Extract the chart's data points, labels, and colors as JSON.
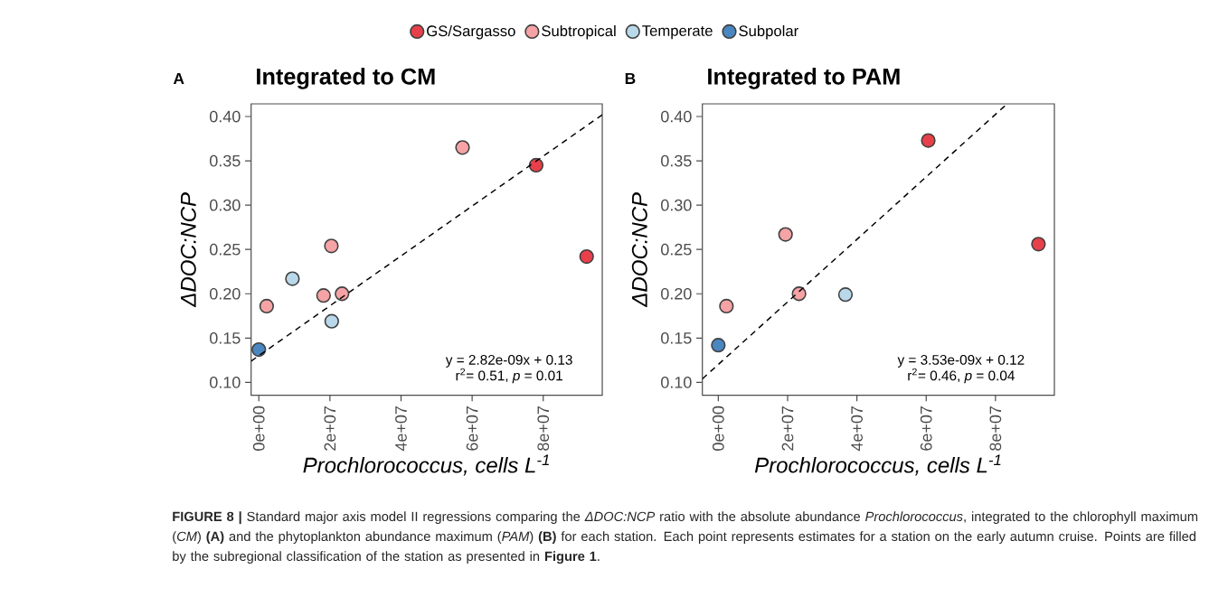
{
  "chart_data": [
    {
      "type": "scatter",
      "title": "Integrated to CM",
      "xlabel": "Prochlorococcus, cells L$^{-1}$",
      "ylabel": "ΔDOC:NCP",
      "xlim": [
        -2170000,
        96600000
      ],
      "ylim": [
        0.0854,
        0.4143
      ],
      "xticks": [
        {
          "value": 0,
          "label": "0e+00"
        },
        {
          "value": 20000000,
          "label": "2e+07"
        },
        {
          "value": 40000000,
          "label": "4e+07"
        },
        {
          "value": 60000000,
          "label": "6e+07"
        },
        {
          "value": 80000000,
          "label": "8e+07"
        }
      ],
      "yticks": [
        {
          "value": 0.1,
          "label": "0.10"
        },
        {
          "value": 0.15,
          "label": "0.15"
        },
        {
          "value": 0.2,
          "label": "0.20"
        },
        {
          "value": 0.25,
          "label": "0.25"
        },
        {
          "value": 0.3,
          "label": "0.30"
        },
        {
          "value": 0.35,
          "label": "0.35"
        },
        {
          "value": 0.4,
          "label": "0.40"
        }
      ],
      "grid": false,
      "legend": "top",
      "marker": "circle",
      "series": [
        {
          "name": "GS/Sargasso",
          "color": "#e8404a",
          "x": [
            78000000,
            92200000
          ],
          "values": [
            0.345,
            0.242
          ]
        },
        {
          "name": "Subtropical",
          "color": "#f5a3a5",
          "x": [
            2200000,
            20400000,
            18200000,
            23400000,
            57300000
          ],
          "values": [
            0.186,
            0.254,
            0.198,
            0.2,
            0.365
          ]
        },
        {
          "name": "Temperate",
          "color": "#b9d9ea",
          "x": [
            9450000,
            20500000
          ],
          "values": [
            0.217,
            0.169
          ]
        },
        {
          "name": "Subpolar",
          "color": "#4a86c0",
          "x": [
            0
          ],
          "values": [
            0.137
          ]
        },
        {
          "type": "line",
          "color": "#000000",
          "line_style": "dashed",
          "marker": "none",
          "x": [
            -2170000,
            96600000
          ],
          "values": [
            0.124,
            0.402
          ]
        }
      ],
      "annotations": [
        "A",
        "y = 2.82e-09x + 0.13",
        "r$^{2}$= 0.51, *p* = 0.01",
        "**FIGURE 8 |** Standard major axis model II regressions comparing the *ΔDOC:NCP* ratio with the absolute abundance *Prochlorococcus*, integrated to the chlorophyll maximum (*CM*) **(A)** and the phytoplankton abundance maximum (*PAM*) **(B)** for each station. Each point represents estimates for a station on the early autumn cruise. Points are filled by the subregional classification of the station as presented in **Figure 1**."
      ]
    },
    {
      "type": "scatter",
      "title": "Integrated to PAM",
      "xlabel": "Prochlorococcus, cells L$^{-1}$",
      "ylabel": "ΔDOC:NCP",
      "xlim": [
        -4600000,
        97000000
      ],
      "ylim": [
        0.0854,
        0.4143
      ],
      "xticks": [
        {
          "value": 0,
          "label": "0e+00"
        },
        {
          "value": 20000000,
          "label": "2e+07"
        },
        {
          "value": 40000000,
          "label": "4e+07"
        },
        {
          "value": 60000000,
          "label": "6e+07"
        },
        {
          "value": 80000000,
          "label": "8e+07"
        }
      ],
      "yticks": [
        {
          "value": 0.1,
          "label": "0.10"
        },
        {
          "value": 0.15,
          "label": "0.15"
        },
        {
          "value": 0.2,
          "label": "0.20"
        },
        {
          "value": 0.25,
          "label": "0.25"
        },
        {
          "value": 0.3,
          "label": "0.30"
        },
        {
          "value": 0.35,
          "label": "0.35"
        },
        {
          "value": 0.4,
          "label": "0.40"
        }
      ],
      "grid": false,
      "marker": "circle",
      "series": [
        {
          "color": "#e8404a",
          "x": [
            60600000,
            92400000
          ],
          "values": [
            0.373,
            0.256
          ]
        },
        {
          "color": "#f5a3a5",
          "x": [
            2350000,
            19400000,
            23300000
          ],
          "values": [
            0.186,
            0.267,
            0.2
          ]
        },
        {
          "color": "#b9d9ea",
          "x": [
            36700000
          ],
          "values": [
            0.199
          ]
        },
        {
          "color": "#4a86c0",
          "x": [
            0
          ],
          "values": [
            0.142
          ]
        },
        {
          "type": "line",
          "color": "#000000",
          "line_style": "dashed",
          "marker": "none",
          "x": [
            -4600000,
            83000000
          ],
          "values": [
            0.104,
            0.413
          ]
        }
      ],
      "annotations": [
        "B",
        "y = 3.53e-09x + 0.12",
        "r$^{2}$= 0.46, *p* = 0.04"
      ]
    }
  ]
}
